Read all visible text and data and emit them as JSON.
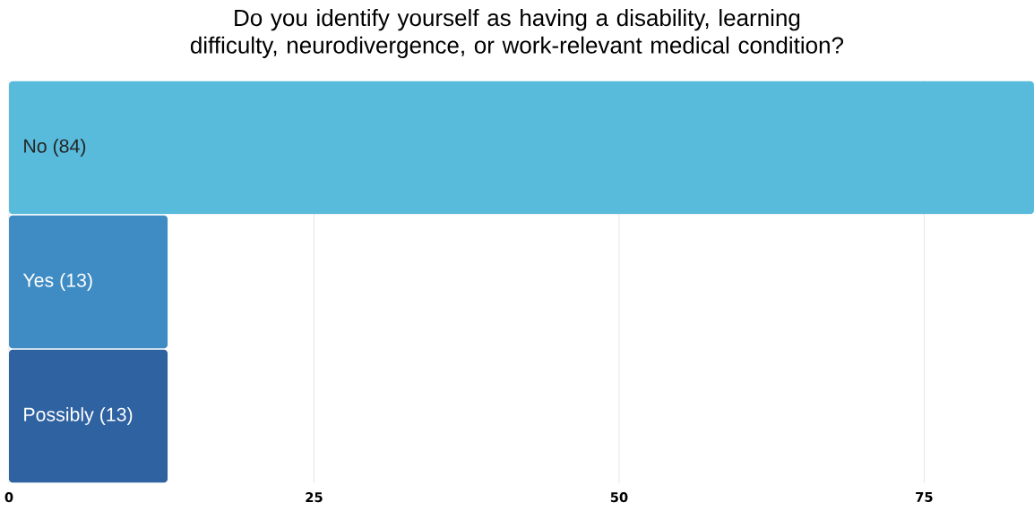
{
  "chart_data": {
    "type": "bar",
    "orientation": "horizontal",
    "title": "Do you identify yourself as having a disability, learning difficulty, neurodivergence, or work-relevant medical condition?",
    "categories": [
      "No (84)",
      "Yes (13)",
      "Possibly (13)"
    ],
    "values": [
      84,
      13,
      13
    ],
    "colors": [
      "#58bbdb",
      "#3f8cc4",
      "#2f62a1"
    ],
    "xlim": [
      0,
      84
    ],
    "xticks": [
      0,
      25,
      50,
      75
    ],
    "grid": "x"
  }
}
